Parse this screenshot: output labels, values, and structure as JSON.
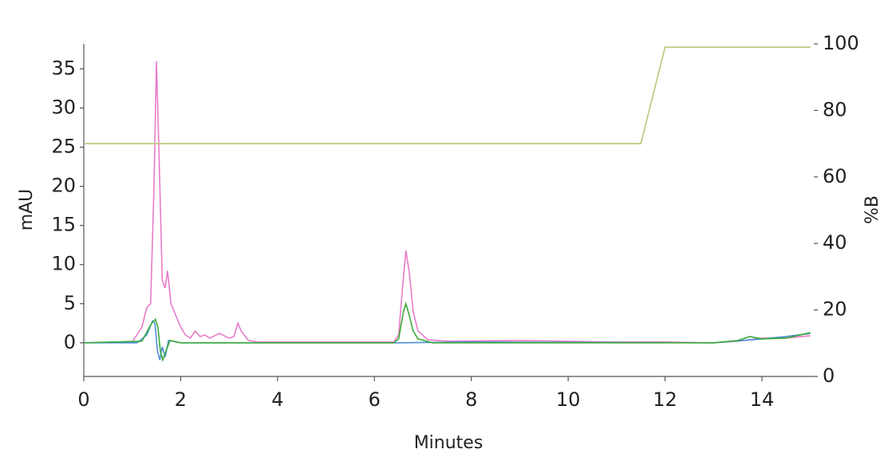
{
  "chart_data": {
    "type": "line",
    "xlabel": "Minutes",
    "ylabel": "mAU",
    "y2label": "%B",
    "xlim": [
      0,
      15
    ],
    "xticks": [
      0,
      2,
      4,
      6,
      8,
      10,
      12,
      14
    ],
    "ylim": [
      -4.3,
      38.2
    ],
    "yticks": [
      0,
      5,
      10,
      15,
      20,
      25,
      30,
      35
    ],
    "y2lim": [
      0,
      100
    ],
    "y2ticks": [
      0,
      20,
      40,
      60,
      80,
      100
    ],
    "series": [
      {
        "color": "#e87cc8",
        "x": [
          0,
          1.0,
          1.2,
          1.3,
          1.38,
          1.45,
          1.5,
          1.55,
          1.62,
          1.68,
          1.73,
          1.8,
          1.9,
          2.0,
          2.1,
          2.2,
          2.3,
          2.4,
          2.5,
          2.6,
          2.8,
          3.0,
          3.1,
          3.18,
          3.25,
          3.4,
          3.6,
          6.4,
          6.5,
          6.58,
          6.65,
          6.72,
          6.8,
          6.9,
          7.1,
          7.5,
          9,
          11,
          12,
          13,
          13.5,
          14,
          14.5,
          15
        ],
        "values": [
          0,
          0.1,
          2,
          4.5,
          5,
          20,
          36,
          25,
          8,
          7,
          9.2,
          5,
          3.5,
          2,
          1,
          0.6,
          1.5,
          0.8,
          1,
          0.6,
          1.2,
          0.6,
          0.8,
          2.5,
          1.5,
          0.3,
          0.1,
          0.1,
          1,
          7,
          11.8,
          9,
          4,
          1.5,
          0.4,
          0.2,
          0.3,
          0.1,
          0.1,
          0,
          0.2,
          0.6,
          0.6,
          0.9
        ]
      },
      {
        "color": "#4f8fd6",
        "x": [
          0,
          1.1,
          1.3,
          1.42,
          1.47,
          1.52,
          1.57,
          1.62,
          1.68,
          1.75,
          2,
          6.5,
          8,
          13,
          14,
          14.5,
          15
        ],
        "values": [
          0,
          0,
          1,
          2.8,
          2.5,
          -1,
          -2.2,
          -0.5,
          -1.8,
          0.3,
          0,
          0,
          0.1,
          0,
          0.5,
          0.8,
          1.2
        ]
      },
      {
        "color": "#3aaa3a",
        "x": [
          0,
          1.2,
          1.4,
          1.48,
          1.53,
          1.58,
          1.63,
          1.7,
          1.78,
          2,
          6.4,
          6.5,
          6.6,
          6.65,
          6.72,
          6.8,
          6.9,
          7.2,
          12,
          13,
          13.5,
          13.75,
          14,
          14.5,
          15
        ],
        "values": [
          0,
          0.2,
          2.5,
          3,
          2,
          -1,
          -2.2,
          -1,
          0.3,
          0,
          0,
          0.5,
          4,
          5,
          3.5,
          1.5,
          0.5,
          0,
          0,
          0,
          0.3,
          0.8,
          0.5,
          0.6,
          1.3
        ]
      },
      {
        "color": "#b8c87a",
        "axis": "y2",
        "x": [
          0,
          11.5,
          12,
          15
        ],
        "values": [
          70,
          70,
          99,
          99
        ]
      }
    ]
  }
}
